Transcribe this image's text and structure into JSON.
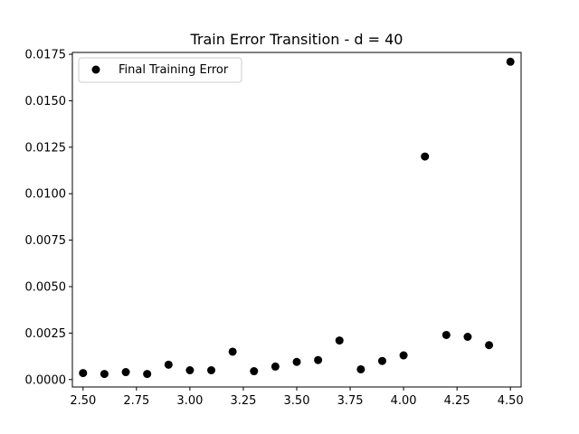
{
  "chart_data": {
    "type": "scatter",
    "title": "Train Error Transition - d = 40",
    "xlabel": "",
    "ylabel": "",
    "xlim": [
      2.45,
      4.55
    ],
    "ylim": [
      -0.0004,
      0.0176
    ],
    "x_ticks": [
      2.5,
      2.75,
      3.0,
      3.25,
      3.5,
      3.75,
      4.0,
      4.25,
      4.5
    ],
    "x_tick_labels": [
      "2.50",
      "2.75",
      "3.00",
      "3.25",
      "3.50",
      "3.75",
      "4.00",
      "4.25",
      "4.50"
    ],
    "y_ticks": [
      0.0,
      0.0025,
      0.005,
      0.0075,
      0.01,
      0.0125,
      0.015,
      0.0175
    ],
    "y_tick_labels": [
      "0.0000",
      "0.0025",
      "0.0050",
      "0.0075",
      "0.0100",
      "0.0125",
      "0.0150",
      "0.0175"
    ],
    "grid": false,
    "legend_position": "top-left",
    "series": [
      {
        "name": "Final Training Error",
        "color": "#000000",
        "marker": "circle",
        "x": [
          2.5,
          2.6,
          2.7,
          2.8,
          2.9,
          3.0,
          3.1,
          3.2,
          3.3,
          3.4,
          3.5,
          3.6,
          3.7,
          3.8,
          3.9,
          4.0,
          4.1,
          4.2,
          4.3,
          4.4,
          4.5
        ],
        "y": [
          0.00035,
          0.0003,
          0.0004,
          0.0003,
          0.0008,
          0.0005,
          0.0005,
          0.0015,
          0.00045,
          0.0007,
          0.00095,
          0.00105,
          0.0021,
          0.00055,
          0.001,
          0.0013,
          0.012,
          0.0024,
          0.0023,
          0.00185,
          0.0171
        ]
      }
    ]
  }
}
